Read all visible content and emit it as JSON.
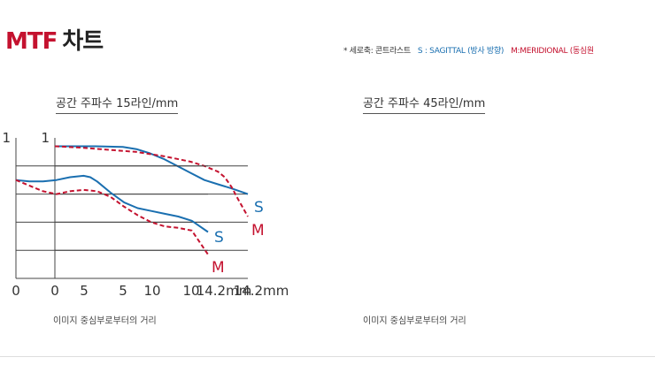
{
  "header": {
    "title_mtf": "MTF",
    "title_kr": "차트",
    "legend_prefix": "* 세로축: 콘트라스트",
    "legend_s": "S : SAGITTAL (방사 방향)",
    "legend_m": "M:MERIDIONAL (동심원",
    "color_s": "#1a6fb0",
    "color_m": "#c4122f"
  },
  "chart_data": [
    {
      "type": "line",
      "title": "공간 주파수 15라인/mm",
      "xlabel": "이미지 중심부로부터의 거리",
      "ylabel": "",
      "xlim": [
        0,
        14.2
      ],
      "ylim": [
        0,
        1
      ],
      "x_ticks": [
        "0",
        "5",
        "10",
        "14.2mm"
      ],
      "y_ticks": [
        "1"
      ],
      "grid": "horizontal",
      "series": [
        {
          "name": "S",
          "color": "#1a6fb0",
          "style": "solid",
          "x": [
            0,
            1,
            3,
            5,
            6,
            7,
            8,
            9,
            10,
            11,
            12,
            13,
            14.2
          ],
          "y": [
            0.94,
            0.94,
            0.94,
            0.935,
            0.92,
            0.89,
            0.85,
            0.8,
            0.75,
            0.7,
            0.67,
            0.64,
            0.6
          ]
        },
        {
          "name": "M",
          "color": "#c4122f",
          "style": "dashed",
          "x": [
            0,
            2,
            4,
            6,
            8,
            9,
            10,
            11,
            12,
            12.5,
            13,
            13.5,
            14.2
          ],
          "y": [
            0.94,
            0.93,
            0.915,
            0.9,
            0.87,
            0.85,
            0.83,
            0.8,
            0.76,
            0.72,
            0.65,
            0.56,
            0.44
          ]
        }
      ]
    },
    {
      "type": "line",
      "title": "공간 주파수 45라인/mm",
      "xlabel": "이미지 중심부로부터의 거리",
      "ylabel": "",
      "xlim": [
        0,
        14.2
      ],
      "ylim": [
        0,
        1
      ],
      "x_ticks": [
        "0",
        "5",
        "10",
        "14.2mm"
      ],
      "y_ticks": [
        "1"
      ],
      "grid": "horizontal",
      "series": [
        {
          "name": "S",
          "color": "#1a6fb0",
          "style": "solid",
          "x": [
            0,
            1,
            2,
            3,
            4,
            5,
            5.5,
            6,
            7,
            8,
            9,
            10,
            11,
            12,
            13,
            14.2
          ],
          "y": [
            0.7,
            0.69,
            0.69,
            0.7,
            0.72,
            0.73,
            0.72,
            0.69,
            0.61,
            0.54,
            0.5,
            0.48,
            0.46,
            0.44,
            0.41,
            0.33
          ]
        },
        {
          "name": "M",
          "color": "#c4122f",
          "style": "dashed",
          "x": [
            0,
            1,
            2,
            3,
            4,
            5,
            6,
            7,
            8,
            9,
            10,
            11,
            12,
            13,
            13.5,
            14.2
          ],
          "y": [
            0.7,
            0.66,
            0.62,
            0.6,
            0.62,
            0.63,
            0.62,
            0.58,
            0.51,
            0.45,
            0.4,
            0.37,
            0.36,
            0.34,
            0.27,
            0.17
          ]
        }
      ]
    }
  ]
}
